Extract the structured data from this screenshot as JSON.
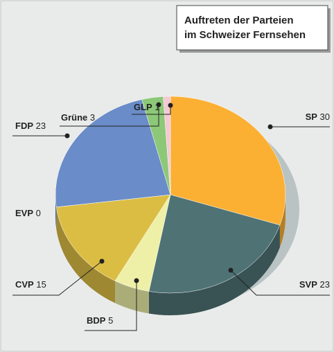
{
  "chart_data": {
    "type": "pie",
    "title": [
      "Auftreten der Parteien",
      "im Schweizer Fernsehen"
    ],
    "categories": [
      "SP",
      "SVP",
      "BDP",
      "CVP",
      "EVP",
      "FDP",
      "Grüne",
      "GLP"
    ],
    "values": [
      30,
      23,
      5,
      15,
      0,
      23,
      3,
      1
    ],
    "colors": [
      "#fbb034",
      "#4f7275",
      "#eef0a8",
      "#dcbd44",
      "#c8a0c8",
      "#6a8cc8",
      "#8cc878",
      "#f4c8d4"
    ]
  }
}
